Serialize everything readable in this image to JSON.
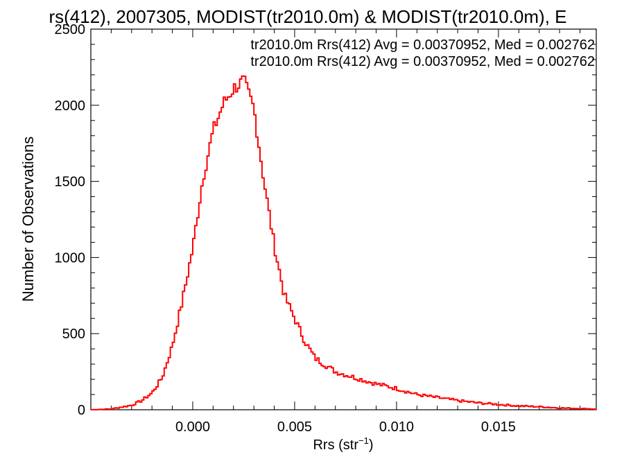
{
  "chart_data": {
    "type": "histogram",
    "title": "rs(412), 2007305, MODIST(tr2010.0m) & MODIST(tr2010.0m), E",
    "xlabel": "Rrs (str",
    "xlabel_sup": "−1",
    "xlabel_end": ")",
    "ylabel": "Number of Observations",
    "xlim": [
      -0.005,
      0.0198
    ],
    "ylim": [
      0,
      2500
    ],
    "x_ticks": [
      0.0,
      0.005,
      0.01,
      0.015
    ],
    "x_tick_labels": [
      "0.000",
      "0.005",
      "0.010",
      "0.015"
    ],
    "y_ticks": [
      0,
      500,
      1000,
      1500,
      2000,
      2500
    ],
    "y_tick_labels": [
      "0",
      "500",
      "1000",
      "1500",
      "2000",
      "2500"
    ],
    "colors": {
      "series_black": "#000000",
      "series_red": "#ff0000"
    },
    "legend": [
      {
        "text": "tr2010.0m Rrs(412) Avg = 0.00370952, Med = 0.002762",
        "color": "#000000"
      },
      {
        "text": "tr2010.0m Rrs(412) Avg = 0.00370952, Med = 0.002762",
        "color": "#ff0000"
      }
    ],
    "legend_position": "top-right",
    "series": [
      {
        "name": "tr2010.0m Rrs(412)",
        "color": "#ff0000",
        "points": [
          [
            -0.005,
            0
          ],
          [
            -0.004,
            5
          ],
          [
            -0.003,
            30
          ],
          [
            -0.0025,
            60
          ],
          [
            -0.002,
            110
          ],
          [
            -0.0015,
            210
          ],
          [
            -0.001,
            420
          ],
          [
            -0.0005,
            720
          ],
          [
            0.0,
            1060
          ],
          [
            0.0005,
            1520
          ],
          [
            0.001,
            1830
          ],
          [
            0.0015,
            2010
          ],
          [
            0.002,
            2110
          ],
          [
            0.0025,
            2160
          ],
          [
            0.003,
            1980
          ],
          [
            0.0035,
            1500
          ],
          [
            0.004,
            1080
          ],
          [
            0.0045,
            750
          ],
          [
            0.005,
            600
          ],
          [
            0.0055,
            450
          ],
          [
            0.006,
            340
          ],
          [
            0.007,
            250
          ],
          [
            0.008,
            210
          ],
          [
            0.009,
            170
          ],
          [
            0.01,
            140
          ],
          [
            0.011,
            100
          ],
          [
            0.012,
            80
          ],
          [
            0.013,
            60
          ],
          [
            0.014,
            45
          ],
          [
            0.015,
            35
          ],
          [
            0.016,
            25
          ],
          [
            0.017,
            20
          ],
          [
            0.018,
            12
          ],
          [
            0.019,
            8
          ],
          [
            0.0198,
            5
          ]
        ]
      }
    ]
  }
}
